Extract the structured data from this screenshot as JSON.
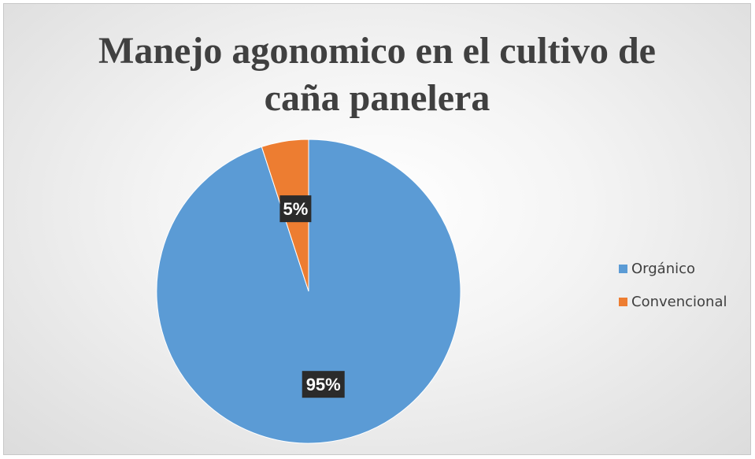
{
  "chart_data": {
    "type": "pie",
    "title": [
      "Manejo agonomico en el cultivo de",
      "caña panelera"
    ],
    "slices": [
      {
        "name": "Orgánico",
        "value": 95,
        "label": "95%",
        "color": "#5b9bd5"
      },
      {
        "name": "Convencional",
        "value": 5,
        "label": "5%",
        "color": "#ed7d31"
      }
    ],
    "legend_position": "right"
  }
}
